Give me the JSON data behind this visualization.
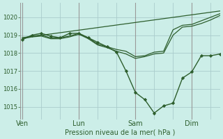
{
  "title": "Pression niveau de la mer( hPa )",
  "bg_color": "#cceee8",
  "line_color": "#2d5e2d",
  "grid_color": "#aacccc",
  "yticks": [
    1015,
    1016,
    1017,
    1018,
    1019,
    1020
  ],
  "ylim": [
    1014.3,
    1020.8
  ],
  "xlim": [
    -0.1,
    10.5
  ],
  "xtick_labels": [
    "Ven",
    "Lun",
    "Sam",
    "Dim"
  ],
  "xtick_positions": [
    0,
    3.0,
    6.0,
    9.0
  ],
  "vline_color": "#999999",
  "line1_x": [
    0,
    0.5,
    1.0,
    1.5,
    2.0,
    2.5,
    3.0,
    3.5,
    4.0,
    4.5,
    5.0,
    5.5,
    6.0,
    6.5,
    7.0,
    7.5,
    8.0,
    8.5,
    9.0,
    9.5,
    10.0,
    10.5
  ],
  "line1_y": [
    1018.75,
    1019.0,
    1019.1,
    1018.95,
    1018.85,
    1019.1,
    1019.1,
    1018.85,
    1018.6,
    1018.35,
    1018.05,
    1017.0,
    1015.8,
    1015.4,
    1014.65,
    1015.05,
    1015.2,
    1016.6,
    1016.95,
    1017.85,
    1017.85,
    1017.95
  ],
  "line2_x": [
    0,
    0.5,
    1.0,
    1.5,
    2.0,
    2.5,
    3.0,
    3.5,
    4.0,
    4.5,
    5.0,
    5.5,
    6.0,
    6.5,
    7.0,
    7.5,
    8.0,
    8.5,
    9.0,
    9.5,
    10.0,
    10.5
  ],
  "line2_y": [
    1018.85,
    1018.95,
    1019.0,
    1018.85,
    1018.85,
    1018.95,
    1019.1,
    1018.85,
    1018.5,
    1018.35,
    1018.2,
    1018.1,
    1017.8,
    1017.85,
    1018.05,
    1018.1,
    1019.3,
    1019.55,
    1019.6,
    1019.8,
    1020.0,
    1020.2
  ],
  "line3_x": [
    0,
    0.5,
    1.0,
    1.5,
    2.0,
    2.5,
    3.0,
    3.5,
    4.0,
    4.5,
    5.0,
    5.5,
    6.0,
    6.5,
    7.0,
    7.5,
    8.0,
    8.5,
    9.0,
    9.5,
    10.0,
    10.5
  ],
  "line3_y": [
    1018.8,
    1018.9,
    1018.95,
    1018.8,
    1018.8,
    1018.9,
    1019.05,
    1018.8,
    1018.45,
    1018.3,
    1018.1,
    1017.95,
    1017.7,
    1017.8,
    1017.95,
    1018.0,
    1019.0,
    1019.45,
    1019.5,
    1019.65,
    1019.85,
    1020.1
  ],
  "line4_x": [
    0,
    10.5
  ],
  "line4_y": [
    1018.85,
    1020.35
  ]
}
